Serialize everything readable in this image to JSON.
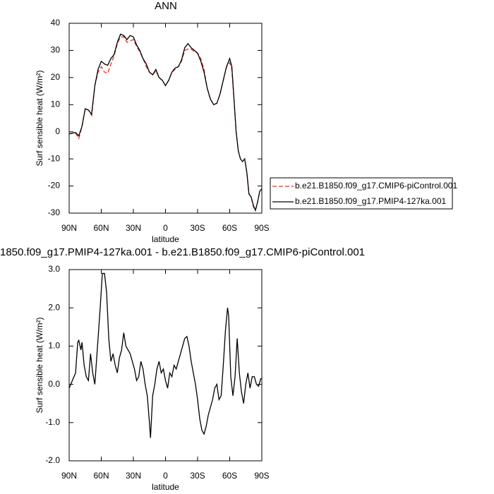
{
  "chart_data": [
    {
      "type": "line",
      "title": "ANN",
      "xlabel": "latitude",
      "ylabel": "Surf sensible heat (W/m²)",
      "x": [
        90,
        87,
        84,
        81,
        78,
        75,
        72,
        69,
        66,
        63,
        60,
        57,
        54,
        51,
        48,
        45,
        42,
        39,
        36,
        33,
        30,
        27,
        24,
        21,
        18,
        15,
        12,
        9,
        6,
        3,
        0,
        -3,
        -6,
        -9,
        -12,
        -15,
        -18,
        -21,
        -24,
        -27,
        -30,
        -33,
        -36,
        -39,
        -42,
        -45,
        -48,
        -51,
        -54,
        -57,
        -60,
        -62,
        -64,
        -66,
        -68,
        -70,
        -72,
        -74,
        -76,
        -78,
        -80,
        -82,
        -84,
        -86,
        -88,
        -90
      ],
      "series": [
        {
          "name": "b.e21.B1850.f09_g17.CMIP6-piControl.001",
          "color": "#e8302a",
          "style": "dashed",
          "values": [
            -0.8,
            -0.5,
            -0.5,
            -2.5,
            2,
            8.5,
            8,
            6,
            17,
            22,
            24,
            22,
            21.5,
            25,
            28,
            32.5,
            35,
            35,
            33,
            33.5,
            34,
            31.5,
            29.5,
            27,
            24,
            22,
            21,
            22.5,
            20,
            19,
            17,
            19,
            22,
            23,
            24,
            26,
            30,
            30.5,
            30.5,
            29.5,
            29,
            27,
            23,
            16,
            12,
            10,
            10.5,
            14,
            19,
            24,
            25.5,
            23,
            12,
            0,
            -7,
            -10,
            -11,
            -10,
            -15,
            -23,
            -24,
            -27.5,
            -29,
            -26,
            -22,
            -21
          ]
        },
        {
          "name": "b.e21.B1850.f09_g17.PMIP4-127ka.001",
          "color": "#000000",
          "style": "solid",
          "values": [
            -0.8,
            -0.5,
            -0.3,
            -1.5,
            2,
            8.5,
            8,
            6.5,
            17,
            23,
            26,
            25,
            24.5,
            27,
            28.5,
            33,
            36,
            35.5,
            34,
            35.5,
            35,
            32,
            30,
            27,
            25,
            22,
            21,
            23,
            20,
            19,
            17,
            19,
            22,
            23.5,
            24,
            26.5,
            31,
            32.5,
            31,
            30,
            29,
            26,
            22,
            16,
            12,
            10,
            10.5,
            14,
            19,
            24,
            27,
            24,
            12,
            0,
            -7,
            -10,
            -11,
            -10,
            -15,
            -23,
            -24,
            -27,
            -29,
            -26,
            -22,
            -21
          ]
        }
      ],
      "xlim": [
        90,
        -90
      ],
      "xticks": [
        {
          "value": 90,
          "label": "90N"
        },
        {
          "value": 60,
          "label": "60N"
        },
        {
          "value": 30,
          "label": "30N"
        },
        0,
        {
          "value": -30,
          "label": "30S"
        },
        {
          "value": -60,
          "label": "60S"
        },
        {
          "value": -90,
          "label": "90S"
        }
      ],
      "ylim": [
        -30,
        40
      ],
      "yticks": [
        40,
        30,
        20,
        10,
        0,
        -10,
        -20,
        -30
      ],
      "legend": "right"
    },
    {
      "type": "line",
      "title": "1850.f09_g17.PMIP4-127ka.001 - b.e21.B1850.f09_g17.CMIP6-piControl.001",
      "xlabel": "latitude",
      "ylabel": "Surf sensible heat (W/m²)",
      "x": [
        90,
        87,
        84,
        82,
        81,
        79,
        78,
        76,
        74,
        72,
        70,
        68,
        66,
        63,
        61,
        59,
        57,
        55,
        53,
        51,
        49,
        47,
        45,
        43,
        41,
        39,
        37,
        35,
        33,
        31,
        29,
        27,
        25,
        23,
        21,
        19,
        17,
        15,
        14,
        12,
        10,
        8,
        6,
        4,
        2,
        0,
        -2,
        -4,
        -6,
        -8,
        -10,
        -12,
        -14,
        -16,
        -18,
        -20,
        -22,
        -24,
        -26,
        -28,
        -30,
        -32,
        -34,
        -36,
        -38,
        -40,
        -42,
        -44,
        -46,
        -48,
        -50,
        -52,
        -54,
        -56,
        -58,
        -59,
        -61,
        -63,
        -65,
        -67,
        -69,
        -71,
        -73,
        -75,
        -77,
        -79,
        -81,
        -83,
        -85,
        -87,
        -89,
        -90
      ],
      "series": [
        {
          "color": "#000000",
          "style": "solid",
          "values": [
            -0.1,
            0.1,
            0.3,
            1.1,
            1.15,
            0.9,
            1.1,
            0.5,
            0.2,
            0.1,
            0.8,
            0.3,
            0.0,
            1.2,
            2.0,
            2.9,
            2.9,
            2.4,
            1.2,
            0.6,
            0.8,
            0.5,
            0.3,
            0.7,
            0.9,
            1.35,
            1.0,
            0.9,
            0.8,
            0.6,
            0.4,
            0.1,
            0.2,
            0.6,
            0.4,
            0.0,
            -0.3,
            -1.0,
            -1.4,
            -0.3,
            0.0,
            0.4,
            0.6,
            0.3,
            0.4,
            0.1,
            -0.1,
            0.3,
            0.2,
            0.5,
            0.4,
            0.6,
            0.8,
            1.0,
            1.2,
            1.25,
            1.0,
            0.6,
            0.3,
            0.0,
            -0.4,
            -0.9,
            -1.2,
            -1.3,
            -1.1,
            -0.8,
            -0.6,
            -0.4,
            -0.1,
            0.0,
            -0.4,
            -0.3,
            0.5,
            1.4,
            2.0,
            1.8,
            0.2,
            -0.3,
            0.2,
            1.2,
            0.3,
            -0.2,
            -0.5,
            0.0,
            0.3,
            -0.1,
            0.2,
            0.2,
            0.0,
            -0.05,
            0.15,
            0.15
          ]
        }
      ],
      "xlim": [
        90,
        -90
      ],
      "xticks": [
        {
          "value": 90,
          "label": "90N"
        },
        {
          "value": 60,
          "label": "60N"
        },
        {
          "value": 30,
          "label": "30N"
        },
        0,
        {
          "value": -30,
          "label": "30S"
        },
        {
          "value": -60,
          "label": "60S"
        },
        {
          "value": -90,
          "label": "90S"
        }
      ],
      "ylim": [
        -2,
        3
      ],
      "yticks": [
        {
          "value": 3,
          "label": "3.0"
        },
        {
          "value": 2,
          "label": "2.0"
        },
        {
          "value": 1,
          "label": "1.0"
        },
        {
          "value": 0,
          "label": "0.0"
        },
        {
          "value": -1,
          "label": "-1.0"
        },
        {
          "value": -2,
          "label": "-2.0"
        }
      ]
    }
  ]
}
